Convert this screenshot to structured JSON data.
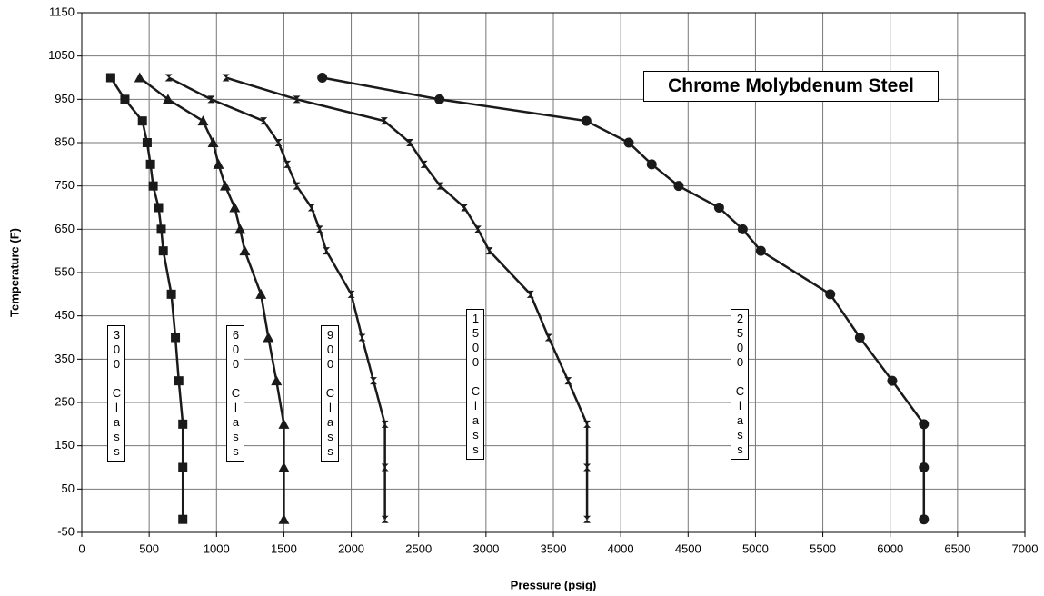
{
  "chart_data": {
    "type": "line",
    "title": "Chrome Molybdenum Steel",
    "x_label": "Pressure (psig)",
    "y_label": "Temperature (F)",
    "xlim": [
      0,
      7000
    ],
    "xticks": [
      0,
      500,
      1000,
      1500,
      2000,
      2500,
      3000,
      3500,
      4000,
      4500,
      5000,
      5500,
      6000,
      6500,
      7000
    ],
    "ylim": [
      -50,
      1150
    ],
    "yticks": [
      -50,
      50,
      150,
      250,
      350,
      450,
      550,
      650,
      750,
      850,
      950,
      1050,
      1150
    ],
    "grid": true,
    "series": [
      {
        "name": "300 Class",
        "color": "#1a1a1a",
        "marker": "square",
        "x": [
          750,
          750,
          750,
          720,
          695,
          665,
          605,
          590,
          570,
          530,
          510,
          485,
          450,
          320,
          215
        ],
        "y": [
          -20,
          100,
          200,
          300,
          400,
          500,
          600,
          650,
          700,
          750,
          800,
          850,
          900,
          950,
          1000
        ]
      },
      {
        "name": "600 Class",
        "color": "#1a1a1a",
        "marker": "triangle",
        "x": [
          1500,
          1500,
          1500,
          1445,
          1385,
          1330,
          1210,
          1175,
          1135,
          1065,
          1015,
          975,
          900,
          640,
          430
        ],
        "y": [
          -20,
          100,
          200,
          300,
          400,
          500,
          600,
          650,
          700,
          750,
          800,
          850,
          900,
          950,
          1000
        ]
      },
      {
        "name": "900 Class",
        "color": "#1a1a1a",
        "marker": "bowtie",
        "x": [
          2250,
          2250,
          2250,
          2165,
          2080,
          2000,
          1815,
          1765,
          1705,
          1595,
          1525,
          1460,
          1350,
          960,
          645
        ],
        "y": [
          -20,
          100,
          200,
          300,
          400,
          500,
          600,
          650,
          700,
          750,
          800,
          850,
          900,
          950,
          1000
        ]
      },
      {
        "name": "1500 Class",
        "color": "#1a1a1a",
        "marker": "bowtie",
        "x": [
          3750,
          3750,
          3750,
          3610,
          3465,
          3330,
          3025,
          2940,
          2840,
          2660,
          2540,
          2435,
          2245,
          1595,
          1070
        ],
        "y": [
          -20,
          100,
          200,
          300,
          400,
          500,
          600,
          650,
          700,
          750,
          800,
          850,
          900,
          950,
          1000
        ]
      },
      {
        "name": "2500 Class",
        "color": "#1a1a1a",
        "marker": "circle",
        "x": [
          6250,
          6250,
          6250,
          6015,
          5775,
          5555,
          5040,
          4905,
          4730,
          4430,
          4230,
          4060,
          3745,
          2655,
          1785
        ],
        "y": [
          -20,
          100,
          200,
          300,
          400,
          500,
          600,
          650,
          700,
          750,
          800,
          850,
          900,
          950,
          1000
        ]
      }
    ]
  }
}
